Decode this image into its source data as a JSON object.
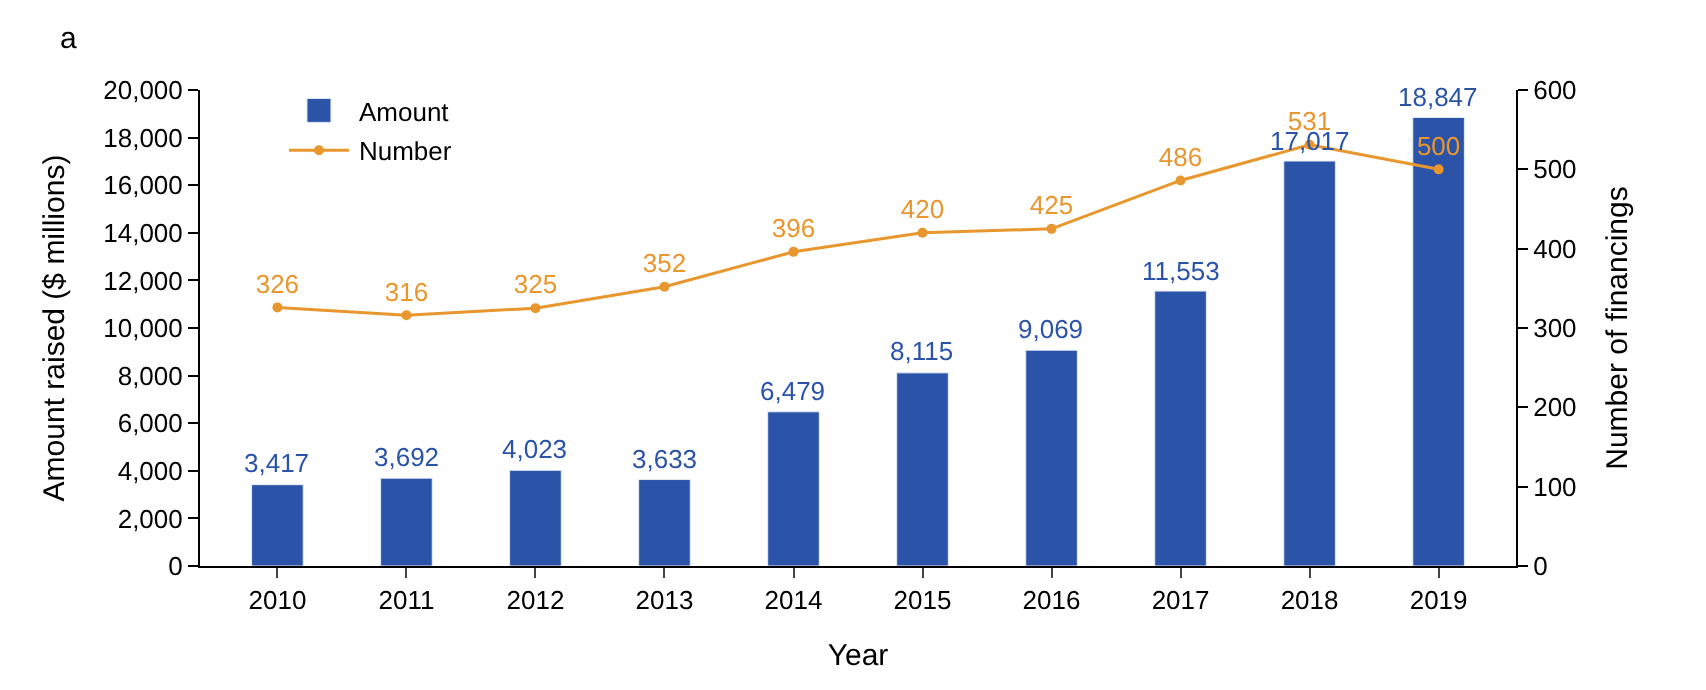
{
  "chart_data": {
    "type": "bar",
    "categories": [
      "2010",
      "2011",
      "2012",
      "2013",
      "2014",
      "2015",
      "2016",
      "2017",
      "2018",
      "2019"
    ],
    "series": [
      {
        "name": "Amount",
        "color": "#2b54a8",
        "values": [
          3417,
          3692,
          4023,
          3633,
          6479,
          8115,
          9069,
          11553,
          17017,
          18847
        ],
        "value_labels": [
          "3,417",
          "3,692",
          "4,023",
          "3,633",
          "6,479",
          "8,115",
          "9,069",
          "11,553",
          "17,017",
          "18,847"
        ]
      },
      {
        "name": "Number",
        "color": "#e8962e",
        "type": "line",
        "axis": "y2",
        "marker": "circle",
        "values": [
          326,
          316,
          325,
          352,
          396,
          420,
          425,
          486,
          531,
          500
        ]
      }
    ],
    "data_labels": true,
    "xlabel": "Year",
    "ylabel": "Amount raised ($ millions)",
    "y2label": "Number of financings",
    "ylim": [
      0,
      20000
    ],
    "yticks": [
      0,
      {
        "value": 2000,
        "label": "2,000"
      },
      {
        "value": 4000,
        "label": "4,000"
      },
      {
        "value": 6000,
        "label": "6,000"
      },
      {
        "value": 8000,
        "label": "8,000"
      },
      {
        "value": 10000,
        "label": "10,000"
      },
      {
        "value": 12000,
        "label": "12,000"
      },
      {
        "value": 14000,
        "label": "14,000"
      },
      {
        "value": 16000,
        "label": "16,000"
      },
      {
        "value": 18000,
        "label": "18,000"
      },
      {
        "value": 20000,
        "label": "20,000"
      }
    ],
    "y2lim": [
      0,
      600
    ],
    "y2ticks": [
      0,
      100,
      200,
      300,
      400,
      500,
      600
    ],
    "annotations": [
      "a"
    ],
    "legend": "top left"
  }
}
